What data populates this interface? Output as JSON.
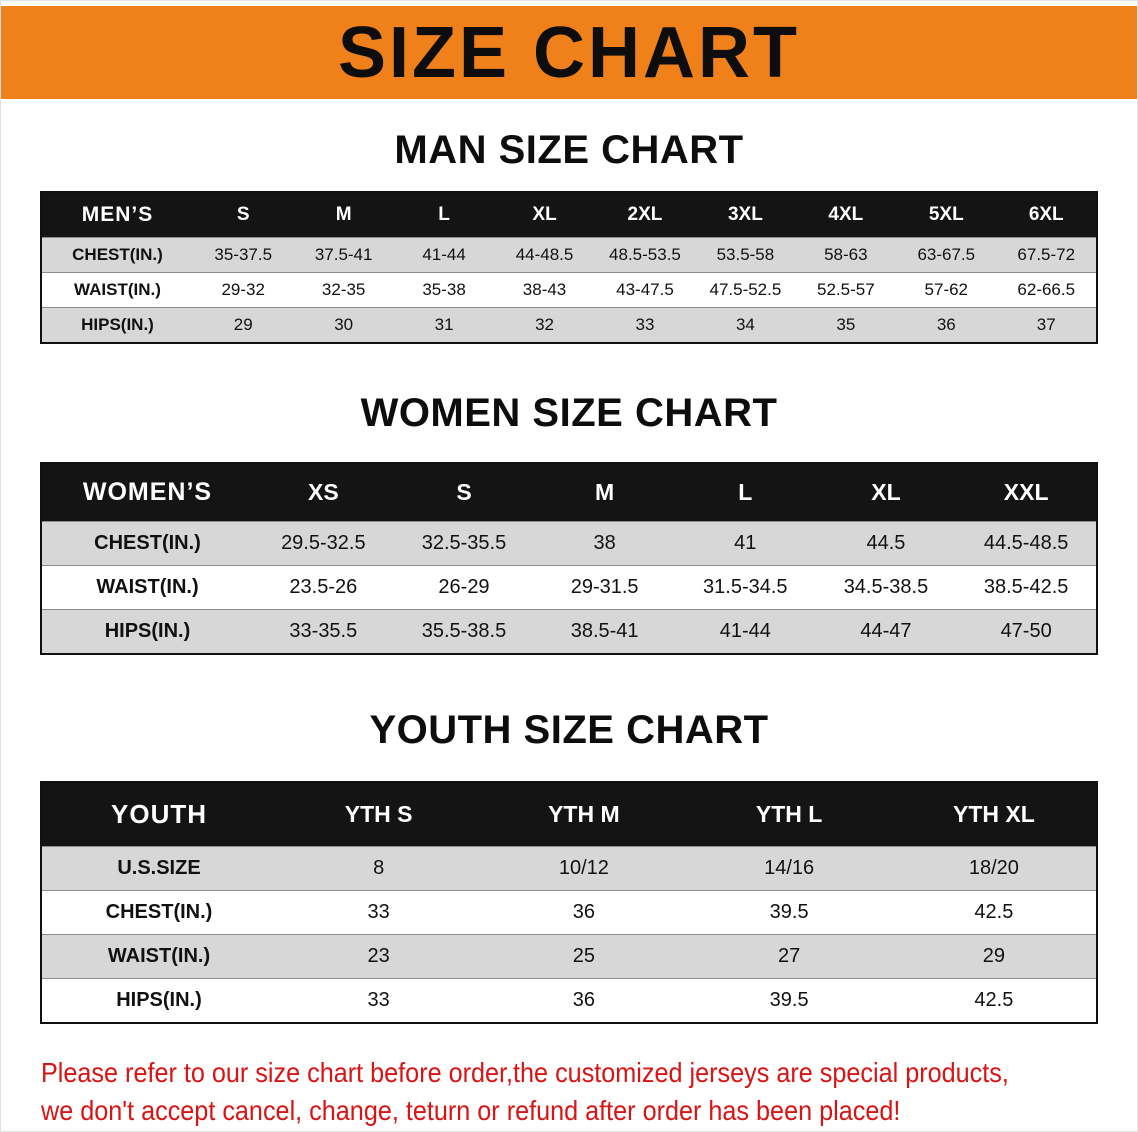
{
  "banner": {
    "title": "SIZE CHART"
  },
  "sections": [
    {
      "heading": "MAN SIZE CHART",
      "table": {
        "header_label": "MEN’S",
        "columns": [
          "S",
          "M",
          "L",
          "XL",
          "2XL",
          "3XL",
          "4XL",
          "5XL",
          "6XL"
        ],
        "rows": [
          {
            "label": "CHEST(IN.)",
            "values": [
              "35-37.5",
              "37.5-41",
              "41-44",
              "44-48.5",
              "48.5-53.5",
              "53.5-58",
              "58-63",
              "63-67.5",
              "67.5-72"
            ]
          },
          {
            "label": "WAIST(IN.)",
            "values": [
              "29-32",
              "32-35",
              "35-38",
              "38-43",
              "43-47.5",
              "47.5-52.5",
              "52.5-57",
              "57-62",
              "62-66.5"
            ]
          },
          {
            "label": "HIPS(IN.)",
            "values": [
              "29",
              "30",
              "31",
              "32",
              "33",
              "34",
              "35",
              "36",
              "37"
            ]
          }
        ]
      }
    },
    {
      "heading": "WOMEN SIZE CHART",
      "table": {
        "header_label": "WOMEN’S",
        "columns": [
          "XS",
          "S",
          "M",
          "L",
          "XL",
          "XXL"
        ],
        "rows": [
          {
            "label": "CHEST(IN.)",
            "values": [
              "29.5-32.5",
              "32.5-35.5",
              "38",
              "41",
              "44.5",
              "44.5-48.5"
            ]
          },
          {
            "label": "WAIST(IN.)",
            "values": [
              "23.5-26",
              "26-29",
              "29-31.5",
              "31.5-34.5",
              "34.5-38.5",
              "38.5-42.5"
            ]
          },
          {
            "label": "HIPS(IN.)",
            "values": [
              "33-35.5",
              "35.5-38.5",
              "38.5-41",
              "41-44",
              "44-47",
              "47-50"
            ]
          }
        ]
      }
    },
    {
      "heading": "YOUTH SIZE CHART",
      "table": {
        "header_label": "YOUTH",
        "columns": [
          "YTH S",
          "YTH M",
          "YTH L",
          "YTH XL"
        ],
        "rows": [
          {
            "label": "U.S.SIZE",
            "values": [
              "8",
              "10/12",
              "14/16",
              "18/20"
            ]
          },
          {
            "label": "CHEST(IN.)",
            "values": [
              "33",
              "36",
              "39.5",
              "42.5"
            ]
          },
          {
            "label": "WAIST(IN.)",
            "values": [
              "23",
              "25",
              "27",
              "29"
            ]
          },
          {
            "label": "HIPS(IN.)",
            "values": [
              "33",
              "36",
              "39.5",
              "42.5"
            ]
          }
        ]
      }
    }
  ],
  "footer": {
    "line1": "Please refer to our size chart before order,the customized jerseys are special products,",
    "line2": "we don't accept cancel, change, teturn or refund after order has been placed!"
  },
  "colors": {
    "banner_orange": "#f0801a",
    "table_header_black": "#141414",
    "row_stripe_gray": "#d7d7d7",
    "notice_red": "#d81414"
  }
}
